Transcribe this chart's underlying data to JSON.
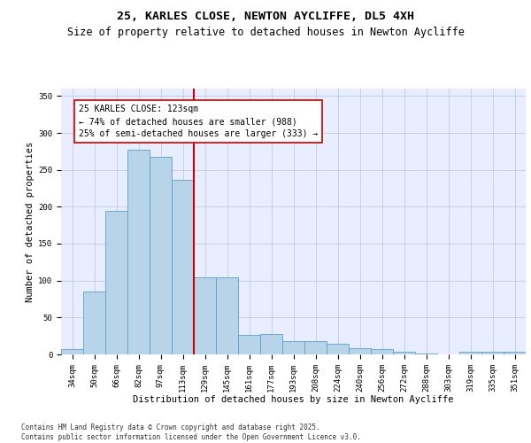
{
  "title": "25, KARLES CLOSE, NEWTON AYCLIFFE, DL5 4XH",
  "subtitle": "Size of property relative to detached houses in Newton Aycliffe",
  "xlabel": "Distribution of detached houses by size in Newton Aycliffe",
  "ylabel": "Number of detached properties",
  "categories": [
    "34sqm",
    "50sqm",
    "66sqm",
    "82sqm",
    "97sqm",
    "113sqm",
    "129sqm",
    "145sqm",
    "161sqm",
    "177sqm",
    "193sqm",
    "208sqm",
    "224sqm",
    "240sqm",
    "256sqm",
    "272sqm",
    "288sqm",
    "303sqm",
    "319sqm",
    "335sqm",
    "351sqm"
  ],
  "values": [
    7,
    85,
    195,
    277,
    268,
    237,
    104,
    104,
    27,
    28,
    18,
    18,
    14,
    8,
    7,
    4,
    1,
    0,
    4,
    4,
    4
  ],
  "bar_color": "#b8d4e8",
  "bar_edge_color": "#5a9fd4",
  "vline_color": "#cc0000",
  "annotation_text": "25 KARLES CLOSE: 123sqm\n← 74% of detached houses are smaller (988)\n25% of semi-detached houses are larger (333) →",
  "annotation_box_color": "#cc0000",
  "ylim": [
    0,
    360
  ],
  "yticks": [
    0,
    50,
    100,
    150,
    200,
    250,
    300,
    350
  ],
  "background_color": "#e8eeff",
  "footer_text": "Contains HM Land Registry data © Crown copyright and database right 2025.\nContains public sector information licensed under the Open Government Licence v3.0.",
  "title_fontsize": 9.5,
  "subtitle_fontsize": 8.5,
  "axis_label_fontsize": 7.5,
  "tick_fontsize": 6.5,
  "annotation_fontsize": 7,
  "footer_fontsize": 5.5,
  "vline_x": 5.5
}
